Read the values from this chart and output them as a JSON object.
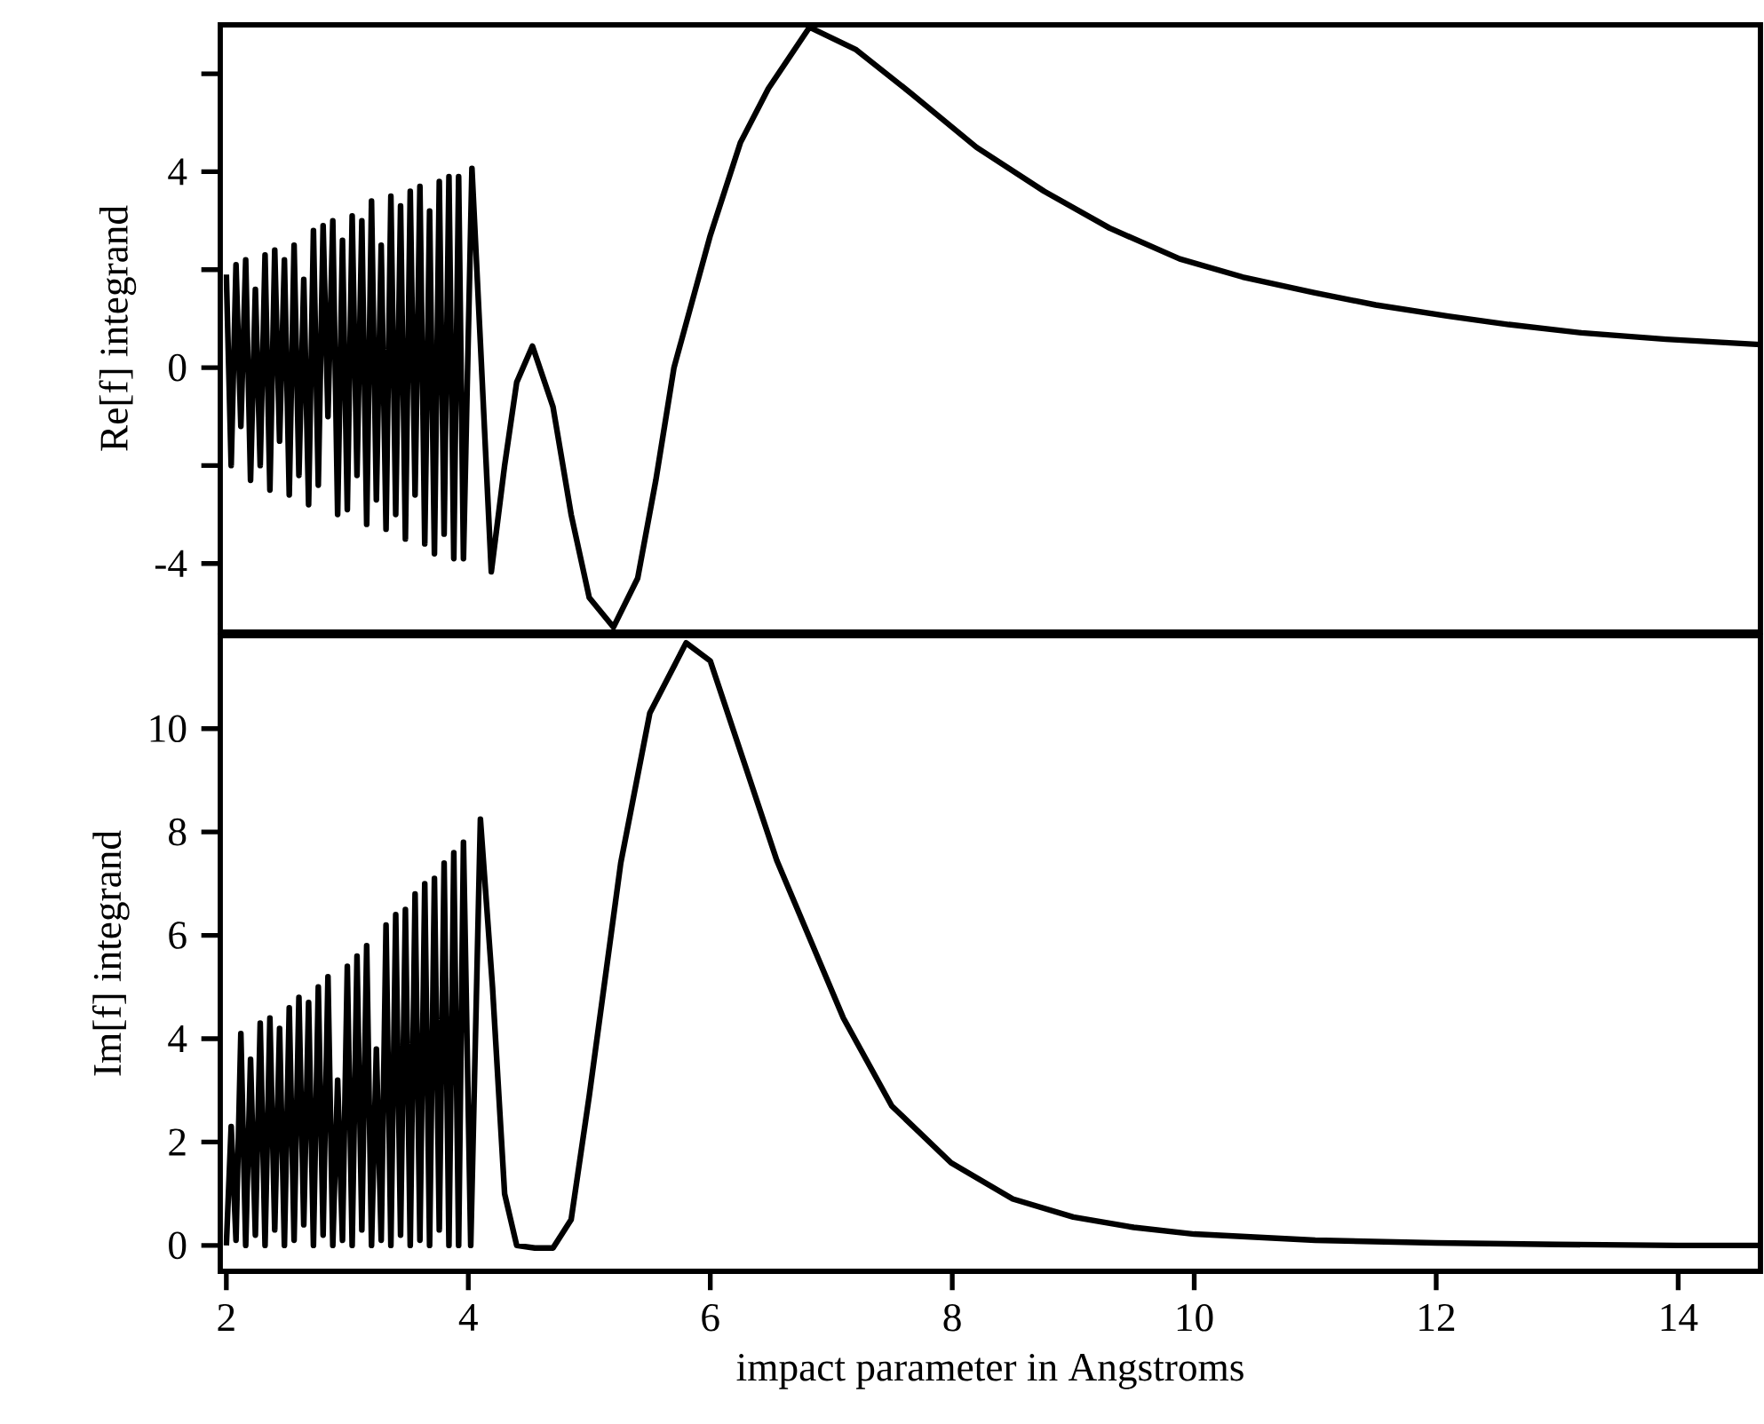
{
  "chart_data": [
    {
      "type": "line",
      "ylabel": "Re[f] integrand",
      "tick_labels": "y",
      "xlim": [
        1.95,
        14.68
      ],
      "ylim": [
        -5.4,
        7.0
      ],
      "yticks": [
        {
          "value": 6,
          "label": null
        },
        4,
        {
          "value": 2,
          "label": null
        },
        0,
        {
          "value": -2,
          "label": null
        },
        -4
      ],
      "series": [
        {
          "color": "#000000",
          "x": [
            2.0,
            2.04,
            2.08,
            2.12,
            2.16,
            2.2,
            2.24,
            2.28,
            2.32,
            2.36,
            2.4,
            2.44,
            2.48,
            2.52,
            2.56,
            2.6,
            2.64,
            2.68,
            2.72,
            2.76,
            2.8,
            2.84,
            2.88,
            2.92,
            2.96,
            3.0,
            3.04,
            3.08,
            3.12,
            3.16,
            3.2,
            3.24,
            3.28,
            3.32,
            3.36,
            3.4,
            3.44,
            3.48,
            3.52,
            3.56,
            3.6,
            3.64,
            3.68,
            3.72,
            3.76,
            3.8,
            3.84,
            3.88,
            3.92,
            3.96,
            4.03,
            4.1,
            4.19,
            4.3,
            4.4,
            4.53,
            4.7,
            4.85,
            5.0,
            5.2,
            5.4,
            5.55,
            5.7,
            6.0,
            6.25,
            6.48,
            6.82,
            7.2,
            7.66,
            8.2,
            8.76,
            9.3,
            9.88,
            10.4,
            10.99,
            11.5,
            12.1,
            12.6,
            13.2,
            13.9,
            14.68
          ],
          "values": [
            1.9,
            -2.0,
            2.1,
            -1.2,
            2.2,
            -2.3,
            1.6,
            -2.0,
            2.3,
            -2.5,
            2.4,
            -1.5,
            2.2,
            -2.6,
            2.5,
            -2.2,
            1.8,
            -2.8,
            2.8,
            -2.4,
            2.9,
            -1.0,
            3.0,
            -3.0,
            2.6,
            -2.9,
            3.1,
            -2.2,
            3.0,
            -3.2,
            3.4,
            -2.7,
            2.5,
            -3.3,
            3.5,
            -3.0,
            3.3,
            -3.5,
            3.6,
            -2.6,
            3.7,
            -3.6,
            3.2,
            -3.8,
            3.8,
            -3.4,
            3.9,
            -3.9,
            3.9,
            -3.9,
            4.07,
            0.5,
            -4.17,
            -2.0,
            -0.3,
            0.44,
            -0.8,
            -3.0,
            -4.7,
            -5.3,
            -4.3,
            -2.3,
            0.0,
            2.7,
            4.6,
            5.7,
            6.95,
            6.5,
            5.6,
            4.5,
            3.6,
            2.85,
            2.22,
            1.85,
            1.53,
            1.28,
            1.05,
            0.88,
            0.71,
            0.58,
            0.47
          ]
        }
      ]
    },
    {
      "type": "line",
      "xlabel": "impact parameter in Angstroms",
      "ylabel": "Im[f] integrand",
      "xlim": [
        1.95,
        14.68
      ],
      "ylim": [
        -0.5,
        11.8
      ],
      "xticks": [
        2,
        4,
        6,
        8,
        10,
        12,
        14
      ],
      "yticks": [
        0,
        2,
        4,
        6,
        8,
        10
      ],
      "series": [
        {
          "color": "#000000",
          "x": [
            2.0,
            2.04,
            2.08,
            2.12,
            2.16,
            2.2,
            2.24,
            2.28,
            2.32,
            2.36,
            2.4,
            2.44,
            2.48,
            2.52,
            2.56,
            2.6,
            2.64,
            2.68,
            2.72,
            2.76,
            2.8,
            2.84,
            2.88,
            2.92,
            2.96,
            3.0,
            3.04,
            3.08,
            3.12,
            3.16,
            3.2,
            3.24,
            3.28,
            3.32,
            3.36,
            3.4,
            3.44,
            3.48,
            3.52,
            3.56,
            3.6,
            3.64,
            3.68,
            3.72,
            3.76,
            3.8,
            3.84,
            3.88,
            3.92,
            3.96,
            4.02,
            4.1,
            4.2,
            4.3,
            4.4,
            4.55,
            4.7,
            4.85,
            5.0,
            5.26,
            5.5,
            5.8,
            6.0,
            6.55,
            7.1,
            7.5,
            7.99,
            8.5,
            9.0,
            9.5,
            10.0,
            11.0,
            12.0,
            13.0,
            14.0,
            14.68
          ],
          "values": [
            0.0,
            2.3,
            0.1,
            4.1,
            0.0,
            3.6,
            0.2,
            4.3,
            0.0,
            4.4,
            0.3,
            4.2,
            0.0,
            4.6,
            0.1,
            4.8,
            0.4,
            4.7,
            0.0,
            5.0,
            0.2,
            5.2,
            0.0,
            3.2,
            0.1,
            5.4,
            0.0,
            5.6,
            0.3,
            5.8,
            0.0,
            3.8,
            0.1,
            6.2,
            0.0,
            6.4,
            0.2,
            6.5,
            0.0,
            6.8,
            0.1,
            7.0,
            0.0,
            7.1,
            0.3,
            7.4,
            0.0,
            7.6,
            0.0,
            7.8,
            0.0,
            8.25,
            5.0,
            1.0,
            0.0,
            -0.05,
            -0.05,
            0.5,
            2.9,
            7.4,
            10.3,
            11.66,
            11.31,
            7.45,
            4.4,
            2.7,
            1.6,
            0.9,
            0.55,
            0.35,
            0.22,
            0.1,
            0.05,
            0.02,
            0.0,
            0.0
          ]
        }
      ]
    }
  ]
}
